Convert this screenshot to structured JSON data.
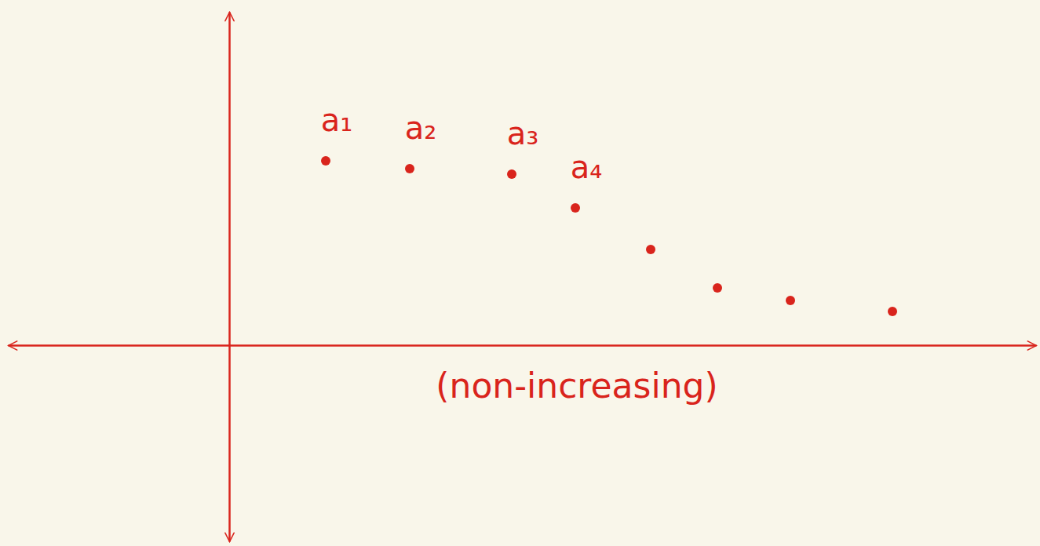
{
  "chart_data": {
    "type": "scatter",
    "x": [
      1.23,
      2.3,
      3.6,
      4.41,
      5.37,
      6.22,
      7.15,
      8.45
    ],
    "values": [
      2.35,
      2.25,
      2.18,
      1.75,
      1.22,
      0.73,
      0.57,
      0.43
    ],
    "labels": [
      "a₁",
      "a₂",
      "a₃",
      "a₄",
      null,
      null,
      null,
      null
    ],
    "annotations": [
      {
        "text": "(non-increasing)",
        "x": 4.43,
        "y": -0.55
      }
    ],
    "xlim": [
      -2.82,
      10.28
    ],
    "ylim": [
      -2.5,
      4.25
    ],
    "tick_labels": false,
    "grid": false,
    "color": "#d9241c",
    "marker": "circle"
  }
}
